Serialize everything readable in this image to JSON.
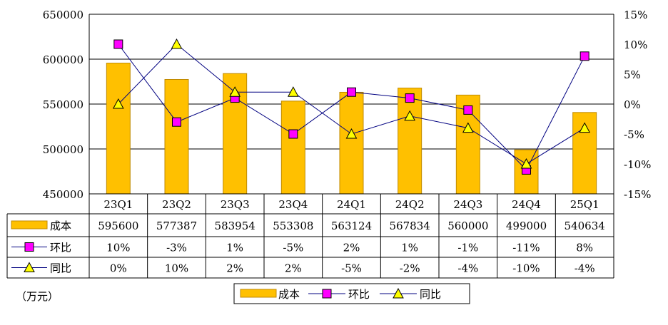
{
  "chart_data": {
    "type": "bar",
    "categories": [
      "23Q1",
      "23Q2",
      "23Q3",
      "23Q4",
      "24Q1",
      "24Q2",
      "24Q3",
      "24Q4",
      "25Q1"
    ],
    "y_left": {
      "min": 450000,
      "max": 650000,
      "ticks": [
        "650000",
        "600000",
        "550000",
        "500000",
        "450000"
      ]
    },
    "y_right": {
      "min": -15,
      "max": 15,
      "ticks": [
        "15%",
        "10%",
        "5%",
        "0%",
        "-5%",
        "-10%",
        "-15%"
      ]
    },
    "series": [
      {
        "name": "成本",
        "kind": "bar",
        "axis": "left",
        "values": [
          595600,
          577387,
          583954,
          553308,
          563124,
          567834,
          560000,
          499000,
          540634
        ],
        "labels": [
          "595600",
          "577387",
          "583954",
          "553308",
          "563124",
          "567834",
          "560000",
          "499000",
          "540634"
        ]
      },
      {
        "name": "环比",
        "kind": "line",
        "axis": "right",
        "marker": "square",
        "values": [
          10,
          -3,
          1,
          -5,
          2,
          1,
          -1,
          -11,
          8
        ],
        "labels": [
          "10%",
          "-3%",
          "1%",
          "-5%",
          "2%",
          "1%",
          "-1%",
          "-11%",
          "8%"
        ]
      },
      {
        "name": "同比",
        "kind": "line",
        "axis": "right",
        "marker": "triangle",
        "values": [
          0,
          10,
          2,
          2,
          -5,
          -2,
          -4,
          -10,
          -4
        ],
        "labels": [
          "0%",
          "10%",
          "2%",
          "2%",
          "-5%",
          "-2%",
          "-4%",
          "-10%",
          "-4%"
        ]
      }
    ],
    "unit": "（万元）",
    "legend": [
      "成本",
      "环比",
      "同比"
    ]
  },
  "colors": {
    "bar_fill": "#FFC000",
    "bar_stroke": "#C08A00",
    "mom_marker": "#FF00FF",
    "mom_line": "#000080",
    "yoy_marker": "#FFFF00",
    "yoy_line": "#000080",
    "grid": "#000000"
  }
}
